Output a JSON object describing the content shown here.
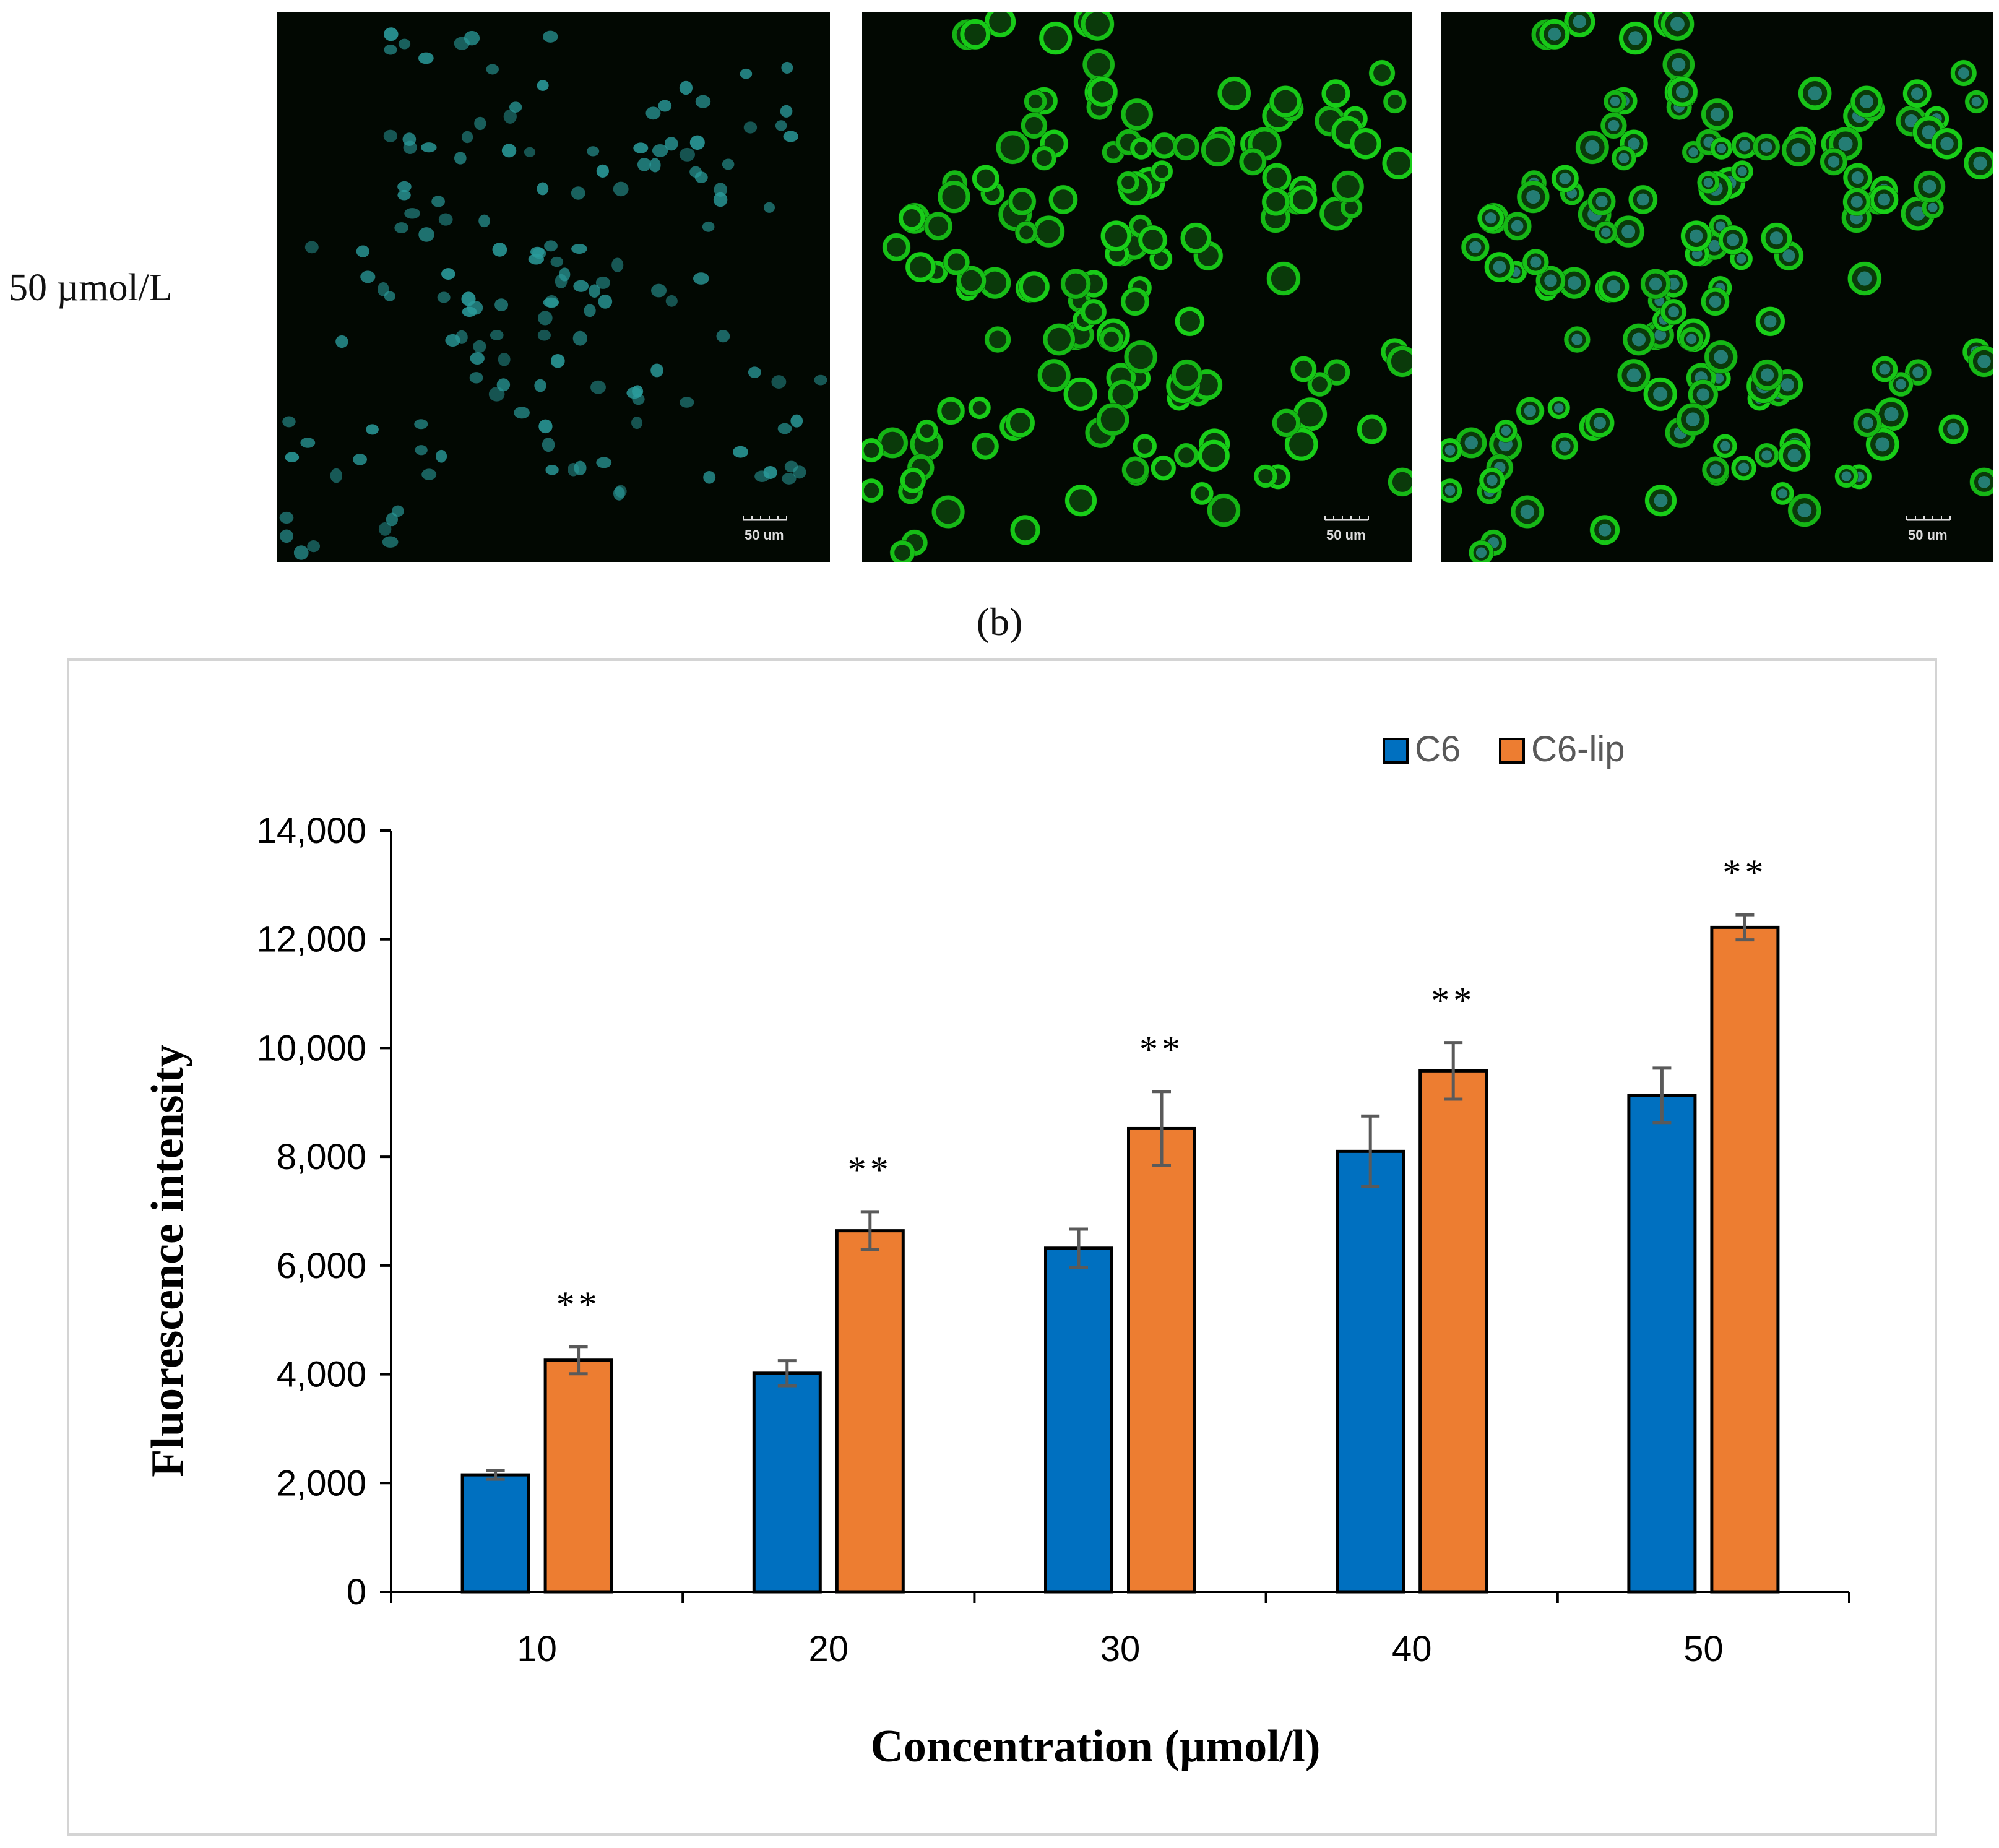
{
  "row_label": "50 µmol/L",
  "panel_label": "(b)",
  "micrographs": [
    {
      "channel": "nucleus",
      "color": "#2a9b9b",
      "scale_bar": "50 um"
    },
    {
      "channel": "green",
      "color": "#19d219",
      "scale_bar": "50 um"
    },
    {
      "channel": "merge",
      "color": "#19d219",
      "scale_bar": "50 um"
    }
  ],
  "chart_data": {
    "type": "bar",
    "xlabel": "Concentration (µmol/l)",
    "ylabel": "Fluorescence intensity",
    "categories": [
      "10",
      "20",
      "30",
      "40",
      "50"
    ],
    "ylim": [
      0,
      14000
    ],
    "yticks": [
      0,
      2000,
      4000,
      6000,
      8000,
      10000,
      12000,
      14000
    ],
    "ytick_labels": [
      "0",
      "2,000",
      "4,000",
      "6,000",
      "8,000",
      "10,000",
      "12,000",
      "14,000"
    ],
    "legend_position": "top-right",
    "grid": false,
    "series": [
      {
        "name": "C6",
        "color": "#0070c0",
        "values": [
          2150,
          4020,
          6320,
          8100,
          9130
        ],
        "errors": [
          80,
          230,
          350,
          650,
          500
        ]
      },
      {
        "name": "C6-lip",
        "color": "#ed7d31",
        "values": [
          4260,
          6640,
          8520,
          9580,
          12220
        ],
        "errors": [
          250,
          350,
          680,
          520,
          230
        ]
      }
    ],
    "annotations": [
      "**",
      "**",
      "**",
      "**",
      "**"
    ]
  }
}
